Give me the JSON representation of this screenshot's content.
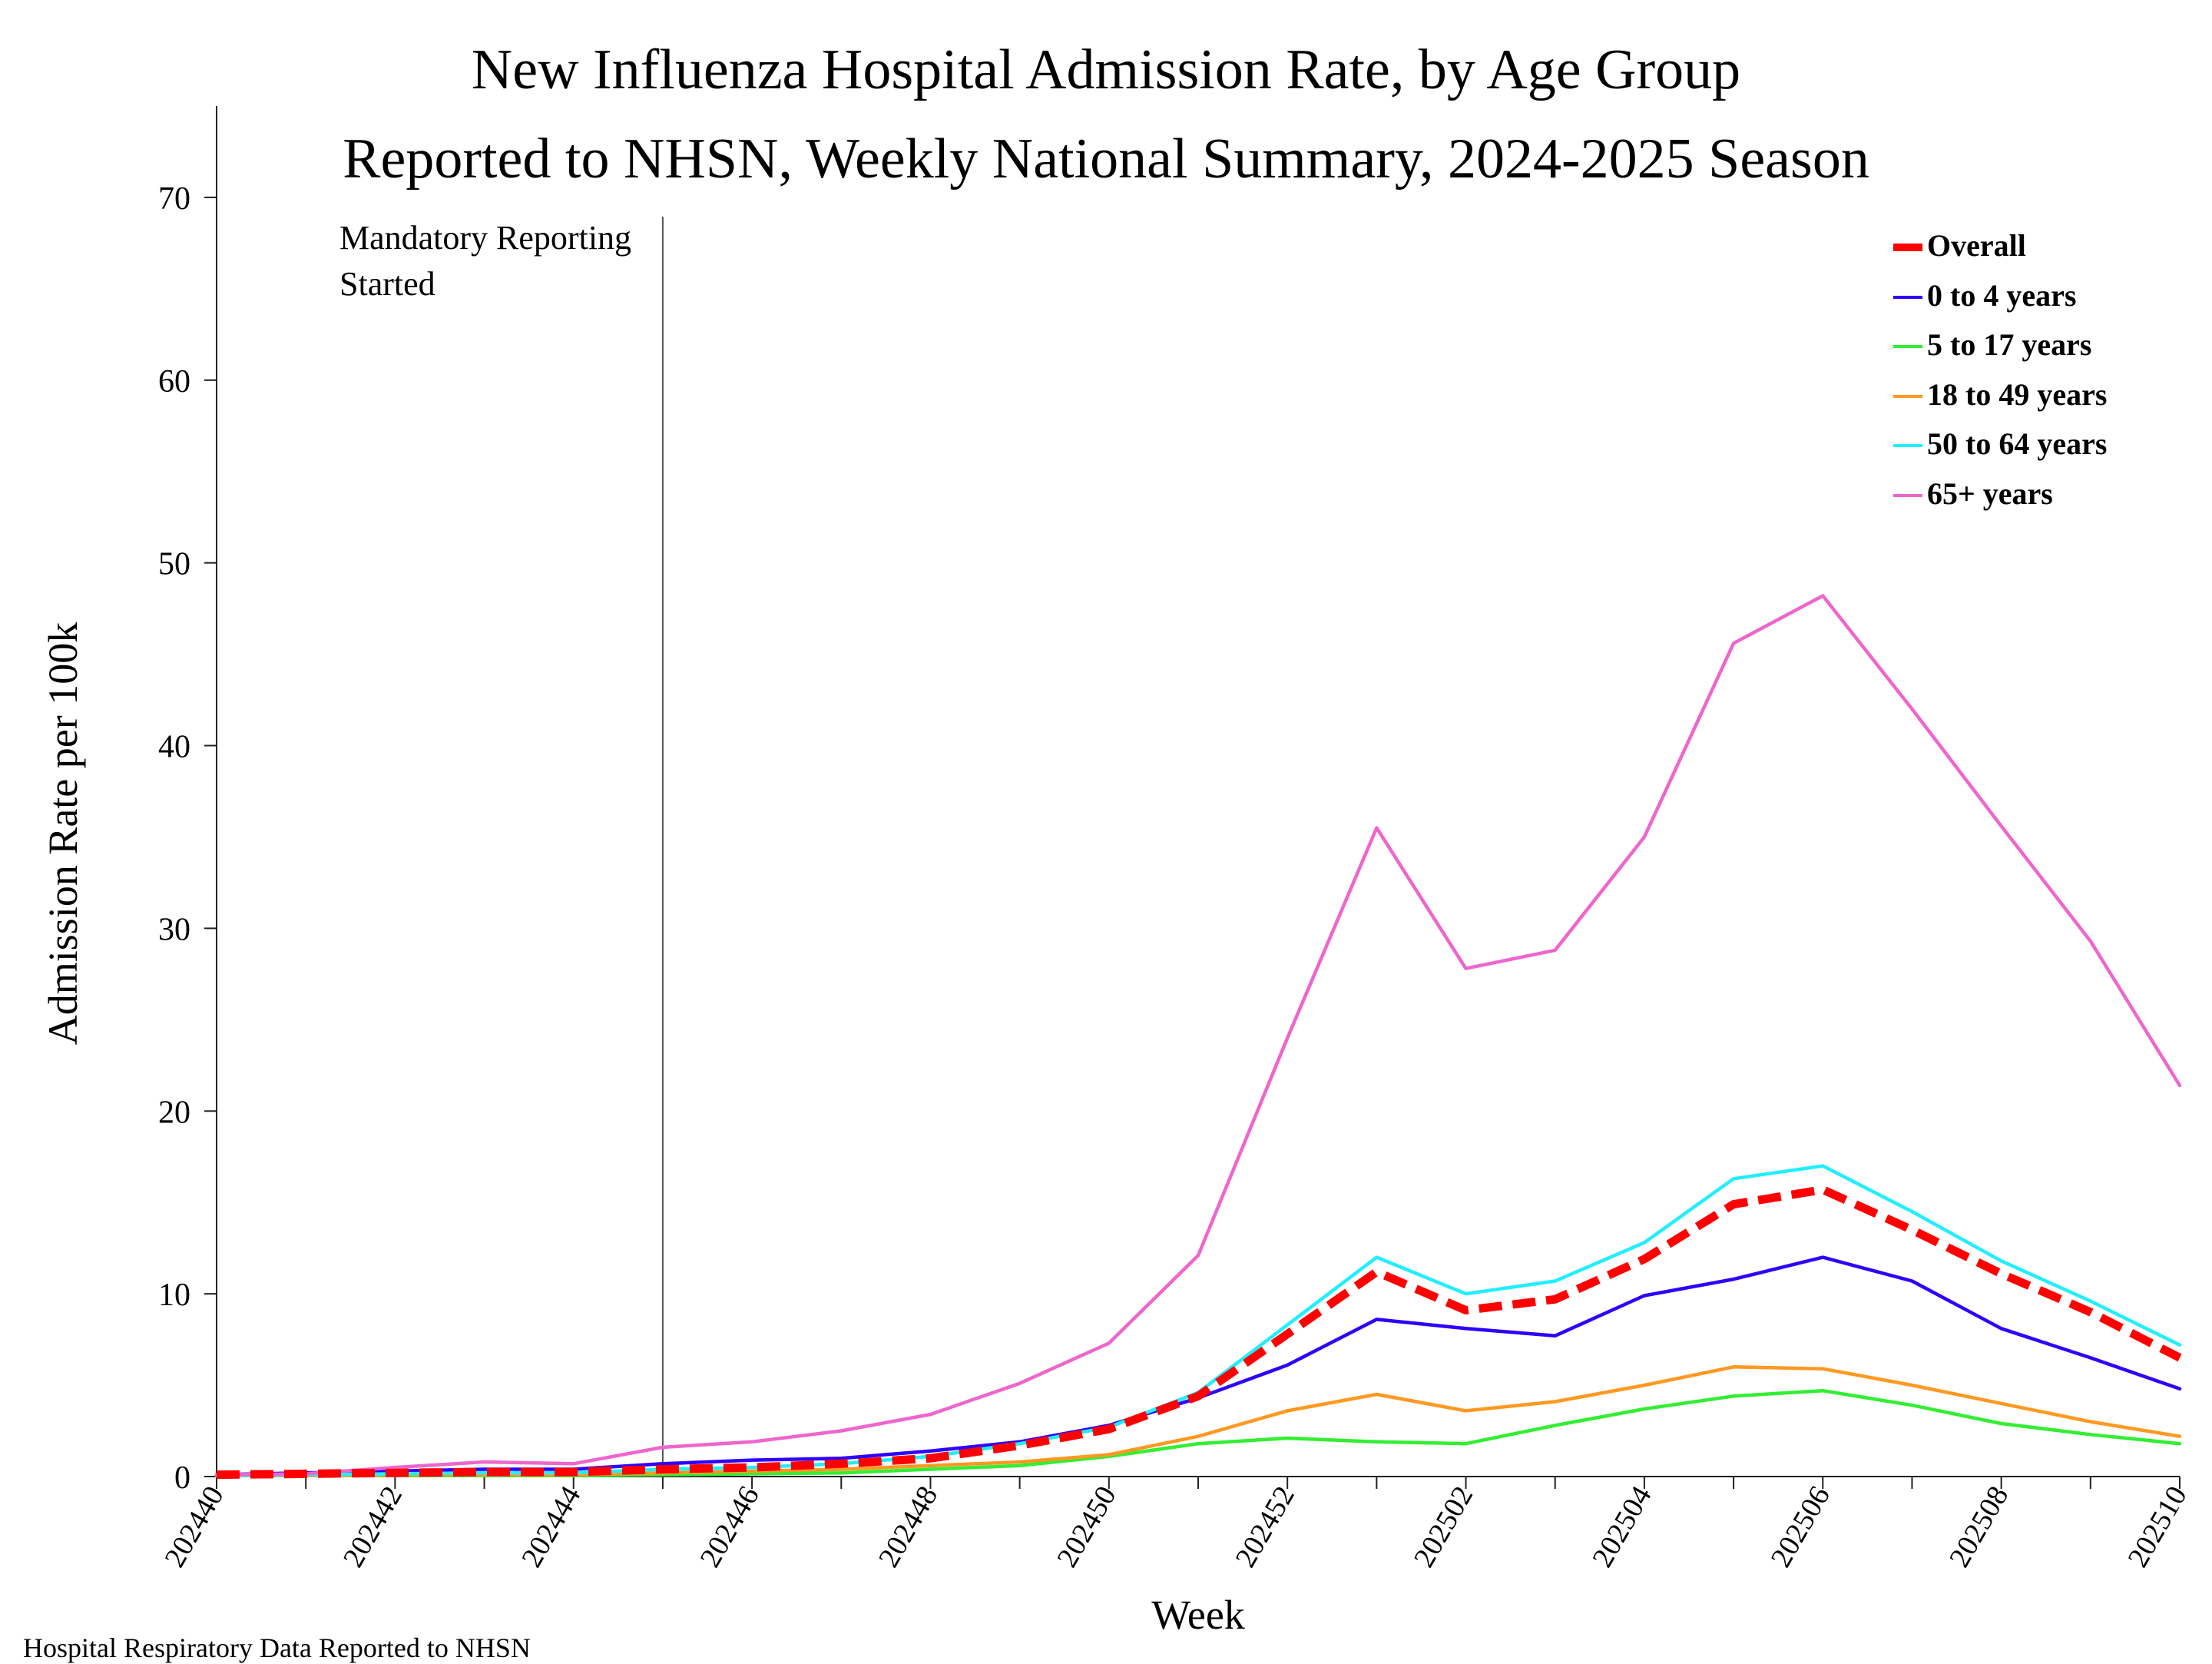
{
  "chart_data": {
    "type": "line",
    "title": "New Influenza Hospital Admission Rate, by Age Group",
    "subtitle": "Reported to NHSN, Weekly National Summary, 2024-2025 Season",
    "xlabel": "Week",
    "ylabel": "Admission Rate per 100k",
    "ylim": [
      0,
      75
    ],
    "yticks": [
      0,
      10,
      20,
      30,
      40,
      50,
      60,
      70
    ],
    "grid": false,
    "legend_position": "top-right",
    "x": [
      "202440",
      "202441",
      "202442",
      "202443",
      "202444",
      "202445",
      "202446",
      "202447",
      "202448",
      "202449",
      "202450",
      "202451",
      "202452",
      "202501",
      "202502",
      "202503",
      "202504",
      "202505",
      "202506",
      "202507",
      "202508",
      "202509",
      "202510"
    ],
    "xtick_labels": [
      "202440",
      "202442",
      "202444",
      "202446",
      "202448",
      "202450",
      "202452",
      "202502",
      "202504",
      "202506",
      "202508",
      "202510"
    ],
    "annotation": {
      "x": "202445",
      "text_line1": "Mandatory Reporting",
      "text_line2": "Started"
    },
    "series": [
      {
        "name": "Overall",
        "color": "#ff0000",
        "dashed": true,
        "bold": true,
        "values": [
          0.1,
          0.15,
          0.2,
          0.25,
          0.25,
          0.4,
          0.5,
          0.7,
          1.0,
          1.7,
          2.6,
          4.4,
          7.8,
          11.2,
          9.1,
          9.7,
          11.9,
          14.9,
          15.7,
          13.5,
          11.1,
          9.0,
          6.5
        ]
      },
      {
        "name": "0 to 4 years",
        "color": "#2d00ff",
        "dashed": false,
        "bold": false,
        "values": [
          0.1,
          0.2,
          0.3,
          0.4,
          0.4,
          0.7,
          0.9,
          1.0,
          1.4,
          1.9,
          2.8,
          4.3,
          6.1,
          8.6,
          8.1,
          7.7,
          9.9,
          10.8,
          12.0,
          10.7,
          8.1,
          6.5,
          4.8
        ]
      },
      {
        "name": "5 to 17 years",
        "color": "#33ee33",
        "dashed": false,
        "bold": false,
        "values": [
          0.05,
          0.05,
          0.05,
          0.05,
          0.05,
          0.1,
          0.15,
          0.2,
          0.4,
          0.6,
          1.1,
          1.8,
          2.1,
          1.9,
          1.8,
          2.8,
          3.7,
          4.4,
          4.7,
          3.9,
          2.9,
          2.3,
          1.8
        ]
      },
      {
        "name": "18 to 49 years",
        "color": "#ff9922",
        "dashed": false,
        "bold": false,
        "values": [
          0.05,
          0.05,
          0.1,
          0.1,
          0.1,
          0.2,
          0.3,
          0.4,
          0.6,
          0.8,
          1.2,
          2.2,
          3.6,
          4.5,
          3.6,
          4.1,
          5.0,
          6.0,
          5.9,
          5.0,
          4.0,
          3.0,
          2.2
        ]
      },
      {
        "name": "50 to 64 years",
        "color": "#22eeff",
        "dashed": false,
        "bold": false,
        "values": [
          0.05,
          0.1,
          0.15,
          0.2,
          0.2,
          0.4,
          0.5,
          0.7,
          1.1,
          1.8,
          2.7,
          4.6,
          8.3,
          12.0,
          10.0,
          10.7,
          12.8,
          16.3,
          17.0,
          14.5,
          11.8,
          9.6,
          7.2
        ]
      },
      {
        "name": "65+ years",
        "color": "#ee66cc",
        "dashed": false,
        "bold": false,
        "values": [
          0.1,
          0.15,
          0.5,
          0.8,
          0.7,
          1.6,
          1.9,
          2.5,
          3.4,
          5.1,
          7.3,
          12.1,
          24.0,
          35.5,
          27.8,
          28.8,
          35.0,
          45.6,
          48.2,
          42.0,
          35.6,
          29.3,
          21.4
        ]
      }
    ]
  },
  "footer": {
    "source_note": "Hospital Respiratory Data Reported to NHSN"
  }
}
